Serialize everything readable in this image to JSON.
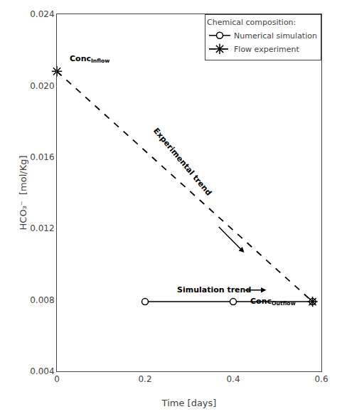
{
  "chart_data": {
    "type": "line",
    "xlabel": "Time [days]",
    "ylabel": "HCO₃⁻  [mol/Kg]",
    "series": [
      {
        "name": "Numerical simulation",
        "x": [
          0.2,
          0.4,
          0.58
        ],
        "values": [
          0.0079,
          0.0079,
          0.0079
        ],
        "color": "#000000",
        "marker": "circle",
        "line_style": "solid"
      },
      {
        "name": "Flow experiment",
        "x": [
          0.0,
          0.58
        ],
        "values": [
          0.0208,
          0.0079
        ],
        "color": "#000000",
        "marker": "asterisk",
        "line_style": "dashed"
      }
    ],
    "xlim": [
      0,
      0.6
    ],
    "ylim": [
      0.004,
      0.024
    ],
    "xticks": [
      0,
      0.2,
      0.4,
      0.6
    ],
    "yticks": [
      0.004,
      0.008,
      0.012,
      0.016,
      {
        "value": 0.02,
        "label": "0.020"
      },
      0.024
    ],
    "grid": false,
    "legend": "upper right",
    "legend_title": "Chemical composition:",
    "annotations": [
      {
        "text": "Conc",
        "subscript": "Inflow",
        "x": 0.025,
        "y": 0.02115
      },
      {
        "text": "Conc",
        "subscript": "Outflow",
        "x": 0.435,
        "y": 0.00755
      },
      {
        "text": "Experimental trend",
        "x": 0.285,
        "y": 0.01575
      },
      {
        "text": "Simulation trend",
        "x": 0.27,
        "y": 0.00855
      }
    ],
    "arrows": [
      {
        "x0": 0.365,
        "y0": 0.01215,
        "x1": 0.425,
        "y1": 0.01065
      },
      {
        "x0": 0.425,
        "y0": 0.00855,
        "x1": 0.475,
        "y1": 0.00855
      }
    ]
  }
}
